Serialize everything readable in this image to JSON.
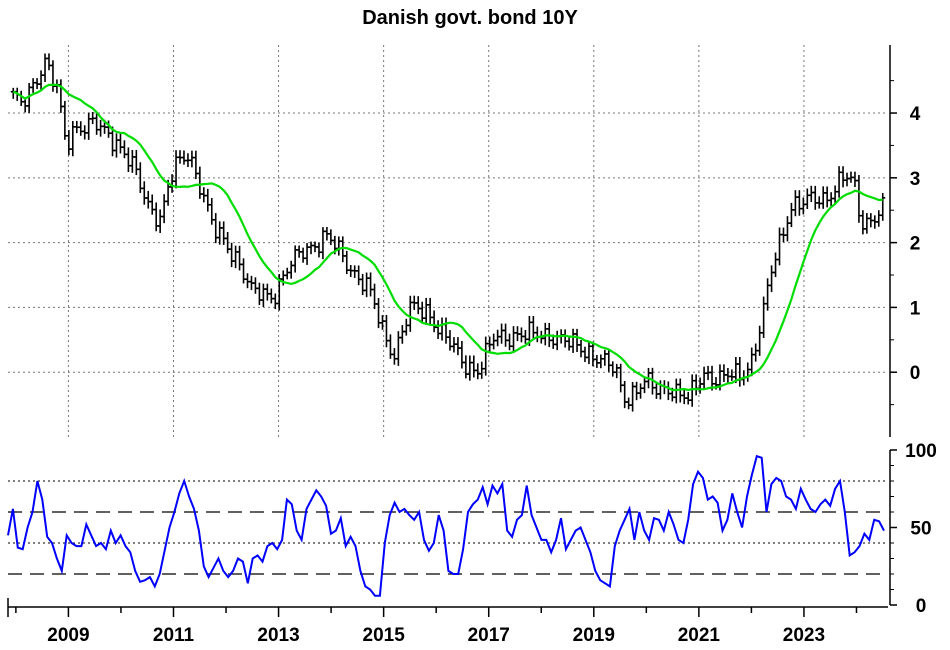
{
  "chart_data": [
    {
      "type": "ohlc",
      "title": "Danish govt. bond 10Y",
      "xlabel": "",
      "ylabel": "",
      "xlim": [
        2007.85,
        2024.6
      ],
      "ylim": [
        -1.0,
        5.05
      ],
      "yticks": [
        0,
        1,
        2,
        3,
        4
      ],
      "xticks": [
        2009,
        2011,
        2013,
        2015,
        2017,
        2019,
        2021,
        2023
      ],
      "grid": true,
      "price_anchors": [
        [
          2007.85,
          4.3
        ],
        [
          2008.1,
          4.1
        ],
        [
          2008.35,
          4.5
        ],
        [
          2008.55,
          4.8
        ],
        [
          2008.8,
          4.3
        ],
        [
          2008.95,
          3.5
        ],
        [
          2009.1,
          3.8
        ],
        [
          2009.5,
          3.8
        ],
        [
          2009.9,
          3.6
        ],
        [
          2010.2,
          3.2
        ],
        [
          2010.5,
          2.6
        ],
        [
          2010.75,
          2.4
        ],
        [
          2011.0,
          3.1
        ],
        [
          2011.3,
          3.4
        ],
        [
          2011.55,
          2.8
        ],
        [
          2011.75,
          2.2
        ],
        [
          2012.2,
          1.8
        ],
        [
          2012.5,
          1.2
        ],
        [
          2012.9,
          1.2
        ],
        [
          2013.1,
          1.5
        ],
        [
          2013.5,
          1.9
        ],
        [
          2013.9,
          2.1
        ],
        [
          2014.3,
          1.7
        ],
        [
          2014.7,
          1.3
        ],
        [
          2015.0,
          0.6
        ],
        [
          2015.2,
          0.3
        ],
        [
          2015.5,
          0.95
        ],
        [
          2015.85,
          0.95
        ],
        [
          2016.2,
          0.5
        ],
        [
          2016.5,
          0.15
        ],
        [
          2016.8,
          0.05
        ],
        [
          2017.1,
          0.5
        ],
        [
          2017.5,
          0.6
        ],
        [
          2017.9,
          0.55
        ],
        [
          2018.2,
          0.6
        ],
        [
          2018.6,
          0.4
        ],
        [
          2019.0,
          0.3
        ],
        [
          2019.4,
          0.0
        ],
        [
          2019.6,
          -0.4
        ],
        [
          2019.95,
          -0.15
        ],
        [
          2020.2,
          -0.3
        ],
        [
          2020.45,
          -0.2
        ],
        [
          2020.8,
          -0.45
        ],
        [
          2021.1,
          0.0
        ],
        [
          2021.4,
          -0.1
        ],
        [
          2021.8,
          -0.05
        ],
        [
          2022.0,
          0.2
        ],
        [
          2022.2,
          0.8
        ],
        [
          2022.4,
          1.6
        ],
        [
          2022.75,
          2.6
        ],
        [
          2023.0,
          2.6
        ],
        [
          2023.4,
          2.7
        ],
        [
          2023.75,
          3.0
        ],
        [
          2023.95,
          2.9
        ],
        [
          2024.1,
          2.3
        ],
        [
          2024.5,
          2.5
        ]
      ],
      "moving_average_color": "#00dd00",
      "bar_color": "#000000"
    },
    {
      "type": "line",
      "title": "",
      "ylim": [
        0,
        100
      ],
      "yticks": [
        0,
        50,
        100
      ],
      "dotted_levels": [
        80,
        40
      ],
      "dashed_levels": [
        60,
        20
      ],
      "series_color": "#0000ff",
      "values": [
        45,
        62,
        37,
        36,
        50,
        60,
        80,
        68,
        44,
        40,
        30,
        22,
        45,
        40,
        38,
        38,
        52,
        45,
        38,
        40,
        36,
        48,
        40,
        45,
        38,
        34,
        22,
        15,
        16,
        18,
        12,
        20,
        35,
        50,
        60,
        72,
        80,
        70,
        62,
        48,
        25,
        18,
        24,
        30,
        22,
        18,
        22,
        30,
        28,
        14,
        30,
        32,
        28,
        38,
        40,
        36,
        42,
        68,
        65,
        48,
        42,
        62,
        68,
        74,
        70,
        64,
        46,
        48,
        56,
        38,
        44,
        38,
        22,
        12,
        10,
        6,
        6,
        40,
        58,
        66,
        60,
        62,
        58,
        55,
        60,
        42,
        35,
        40,
        58,
        48,
        22,
        20,
        20,
        36,
        60,
        65,
        68,
        76,
        65,
        77,
        72,
        78,
        48,
        44,
        55,
        58,
        77,
        58,
        50,
        42,
        42,
        34,
        42,
        56,
        36,
        42,
        48,
        50,
        42,
        34,
        22,
        16,
        14,
        12,
        38,
        48,
        55,
        62,
        42,
        60,
        48,
        42,
        56,
        55,
        48,
        60,
        52,
        42,
        40,
        55,
        78,
        86,
        82,
        68,
        70,
        66,
        48,
        55,
        72,
        60,
        50,
        70,
        84,
        96,
        95,
        60,
        78,
        82,
        80,
        70,
        68,
        62,
        75,
        68,
        62,
        60,
        65,
        68,
        64,
        75,
        80,
        60,
        32,
        34,
        38,
        46,
        42,
        55,
        54,
        48
      ]
    }
  ]
}
